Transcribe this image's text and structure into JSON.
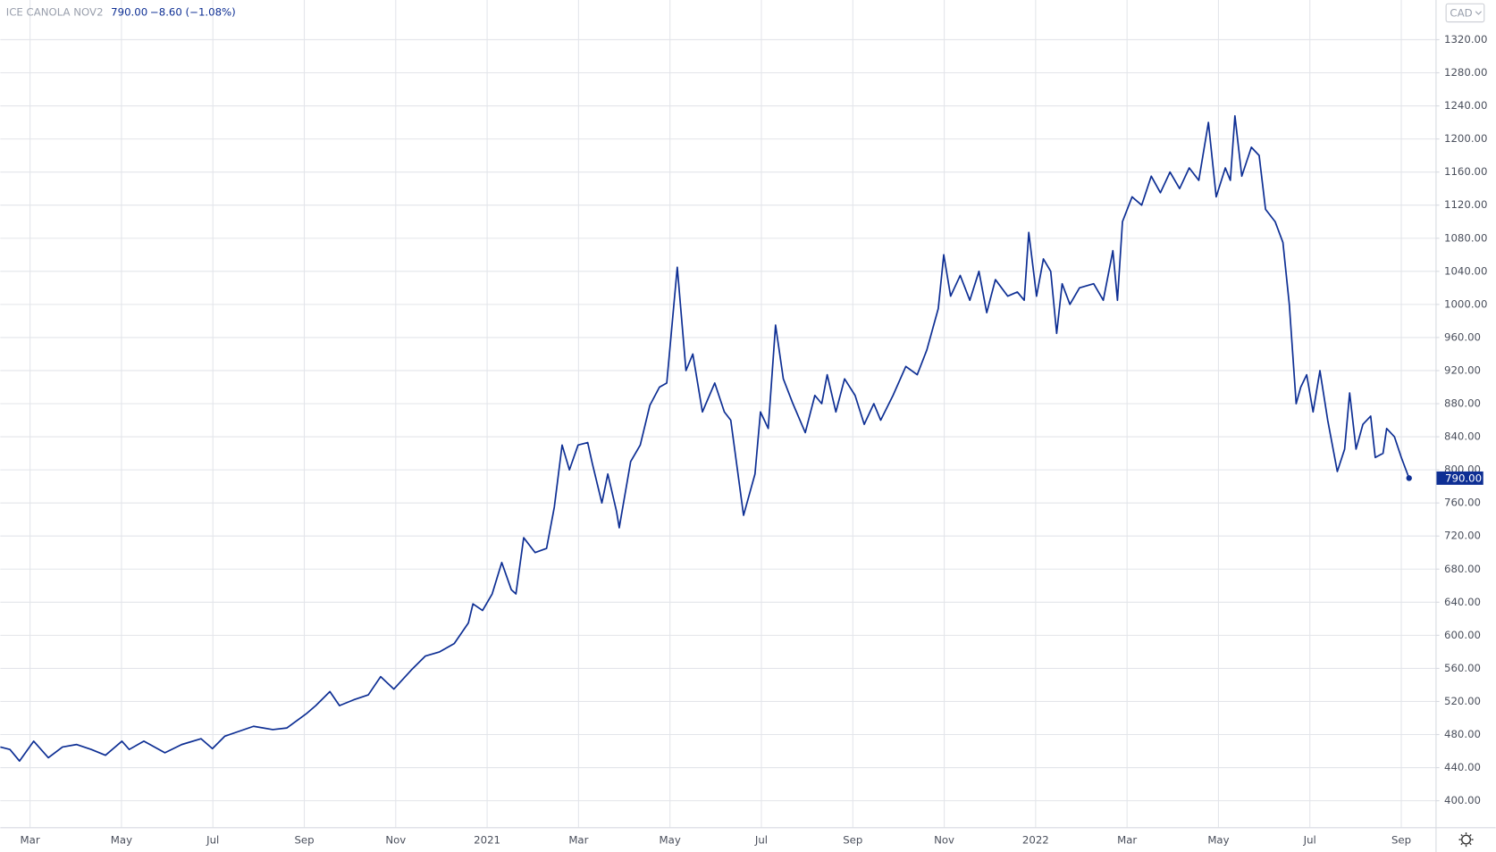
{
  "header": {
    "symbol": "ICE CANOLA NOV2",
    "last_price": "790.00",
    "change": "−8.60 (−1.08%)",
    "currency": "CAD"
  },
  "chart_data": {
    "type": "line",
    "x": [
      -0.65,
      -0.44,
      -0.23,
      0.08,
      0.4,
      0.71,
      1.02,
      1.34,
      1.65,
      2.01,
      2.17,
      2.49,
      2.95,
      3.32,
      3.74,
      3.99,
      4.26,
      4.89,
      5.31,
      5.62,
      6.04,
      6.25,
      6.56,
      6.77,
      7.08,
      7.4,
      7.67,
      7.96,
      8.34,
      8.65,
      8.96,
      9.28,
      9.59,
      9.69,
      9.9,
      10.11,
      10.32,
      10.53,
      10.63,
      10.8,
      11.05,
      11.3,
      11.47,
      11.64,
      11.8,
      11.99,
      12.2,
      12.3,
      12.51,
      12.64,
      12.83,
      12.89,
      13.14,
      13.35,
      13.56,
      13.77,
      13.93,
      14.16,
      14.35,
      14.5,
      14.71,
      14.98,
      15.19,
      15.33,
      15.61,
      15.86,
      15.98,
      16.15,
      16.31,
      16.48,
      16.69,
      16.96,
      17.17,
      17.32,
      17.44,
      17.63,
      17.82,
      18.05,
      18.25,
      18.46,
      18.61,
      18.88,
      19.16,
      19.41,
      19.62,
      19.87,
      19.99,
      20.14,
      20.35,
      20.56,
      20.76,
      20.93,
      21.12,
      21.39,
      21.6,
      21.75,
      21.85,
      22.02,
      22.17,
      22.33,
      22.46,
      22.58,
      22.75,
      22.96,
      23.27,
      23.48,
      23.69,
      23.79,
      23.9,
      24.11,
      24.32,
      24.53,
      24.73,
      24.94,
      25.15,
      25.36,
      25.57,
      25.78,
      25.95,
      26.15,
      26.26,
      26.36,
      26.51,
      26.72,
      26.89,
      27.03,
      27.24,
      27.41,
      27.55,
      27.7,
      27.8,
      27.93,
      28.07,
      28.22,
      28.39,
      28.6,
      28.76,
      28.87,
      29.01,
      29.16,
      29.33,
      29.43,
      29.6,
      29.68,
      29.85,
      30.0,
      30.17
    ],
    "series": [
      {
        "name": "ICE CANOLA NOV2",
        "color": "#0e2f94",
        "values": [
          465,
          462,
          448,
          472,
          452,
          465,
          468,
          462,
          455,
          472,
          462,
          472,
          458,
          468,
          475,
          463,
          478,
          490,
          486,
          488,
          505,
          515,
          532,
          515,
          522,
          528,
          550,
          535,
          558,
          575,
          580,
          590,
          615,
          638,
          630,
          650,
          688,
          655,
          650,
          718,
          700,
          705,
          755,
          830,
          800,
          830,
          833,
          808,
          760,
          795,
          750,
          730,
          810,
          830,
          878,
          900,
          905,
          1045,
          920,
          940,
          870,
          905,
          870,
          860,
          745,
          795,
          870,
          850,
          975,
          910,
          880,
          845,
          890,
          880,
          915,
          870,
          910,
          890,
          855,
          880,
          860,
          890,
          925,
          915,
          945,
          995,
          1060,
          1010,
          1035,
          1005,
          1040,
          990,
          1030,
          1010,
          1015,
          1005,
          1087,
          1010,
          1055,
          1040,
          965,
          1025,
          1000,
          1020,
          1025,
          1005,
          1065,
          1005,
          1100,
          1130,
          1120,
          1155,
          1135,
          1160,
          1140,
          1165,
          1150,
          1220,
          1130,
          1165,
          1150,
          1228,
          1155,
          1190,
          1180,
          1115,
          1100,
          1075,
          1000,
          880,
          900,
          915,
          870,
          920,
          860,
          798,
          825,
          893,
          825,
          855,
          865,
          815,
          820,
          850,
          840,
          815,
          790
        ]
      }
    ],
    "xlim": [
      -0.65,
      30.75
    ],
    "ylim": [
      368,
      1368
    ],
    "xticks": [
      {
        "value": 0,
        "label": "Mar"
      },
      {
        "value": 2,
        "label": "May"
      },
      {
        "value": 4,
        "label": "Jul"
      },
      {
        "value": 6,
        "label": "Sep"
      },
      {
        "value": 8,
        "label": "Nov"
      },
      {
        "value": 10,
        "label": "2021"
      },
      {
        "value": 12,
        "label": "Mar"
      },
      {
        "value": 14,
        "label": "May"
      },
      {
        "value": 16,
        "label": "Jul"
      },
      {
        "value": 18,
        "label": "Sep"
      },
      {
        "value": 20,
        "label": "Nov"
      },
      {
        "value": 22,
        "label": "2022"
      },
      {
        "value": 24,
        "label": "Mar"
      },
      {
        "value": 26,
        "label": "May"
      },
      {
        "value": 28,
        "label": "Jul"
      },
      {
        "value": 30,
        "label": "Sep"
      }
    ],
    "yticks": [
      {
        "value": 400,
        "label": "400.00"
      },
      {
        "value": 440,
        "label": "440.00"
      },
      {
        "value": 480,
        "label": "480.00"
      },
      {
        "value": 520,
        "label": "520.00"
      },
      {
        "value": 560,
        "label": "560.00"
      },
      {
        "value": 600,
        "label": "600.00"
      },
      {
        "value": 640,
        "label": "640.00"
      },
      {
        "value": 680,
        "label": "680.00"
      },
      {
        "value": 720,
        "label": "720.00"
      },
      {
        "value": 760,
        "label": "760.00"
      },
      {
        "value": 800,
        "label": "800.00"
      },
      {
        "value": 840,
        "label": "840.00"
      },
      {
        "value": 880,
        "label": "880.00"
      },
      {
        "value": 920,
        "label": "920.00"
      },
      {
        "value": 960,
        "label": "960.00"
      },
      {
        "value": 1000,
        "label": "1000.00"
      },
      {
        "value": 1040,
        "label": "1040.00"
      },
      {
        "value": 1080,
        "label": "1080.00"
      },
      {
        "value": 1120,
        "label": "1120.00"
      },
      {
        "value": 1160,
        "label": "1160.00"
      },
      {
        "value": 1200,
        "label": "1200.00"
      },
      {
        "value": 1240,
        "label": "1240.00"
      },
      {
        "value": 1280,
        "label": "1280.00"
      },
      {
        "value": 1320,
        "label": "1320.00"
      }
    ],
    "grid": true
  }
}
